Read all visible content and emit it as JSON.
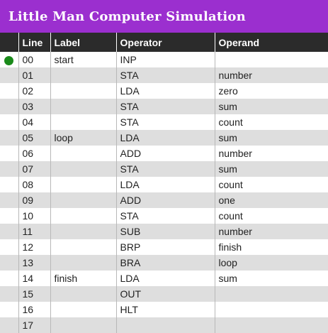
{
  "app": {
    "title": "Little Man Computer Simulation"
  },
  "table": {
    "headers": {
      "indicator": "",
      "line": "Line",
      "label": "Label",
      "operator": "Operator",
      "operand": "Operand"
    },
    "current_line": "00",
    "rows": [
      {
        "line": "00",
        "label": "start",
        "operator": "INP",
        "operand": ""
      },
      {
        "line": "01",
        "label": "",
        "operator": "STA",
        "operand": "number"
      },
      {
        "line": "02",
        "label": "",
        "operator": "LDA",
        "operand": "zero"
      },
      {
        "line": "03",
        "label": "",
        "operator": "STA",
        "operand": "sum"
      },
      {
        "line": "04",
        "label": "",
        "operator": "STA",
        "operand": "count"
      },
      {
        "line": "05",
        "label": "loop",
        "operator": "LDA",
        "operand": "sum"
      },
      {
        "line": "06",
        "label": "",
        "operator": "ADD",
        "operand": "number"
      },
      {
        "line": "07",
        "label": "",
        "operator": "STA",
        "operand": "sum"
      },
      {
        "line": "08",
        "label": "",
        "operator": "LDA",
        "operand": "count"
      },
      {
        "line": "09",
        "label": "",
        "operator": "ADD",
        "operand": "one"
      },
      {
        "line": "10",
        "label": "",
        "operator": "STA",
        "operand": "count"
      },
      {
        "line": "11",
        "label": "",
        "operator": "SUB",
        "operand": "number"
      },
      {
        "line": "12",
        "label": "",
        "operator": "BRP",
        "operand": "finish"
      },
      {
        "line": "13",
        "label": "",
        "operator": "BRA",
        "operand": "loop"
      },
      {
        "line": "14",
        "label": "finish",
        "operator": "LDA",
        "operand": "sum"
      },
      {
        "line": "15",
        "label": "",
        "operator": "OUT",
        "operand": ""
      },
      {
        "line": "16",
        "label": "",
        "operator": "HLT",
        "operand": ""
      },
      {
        "line": "17",
        "label": "",
        "operator": "",
        "operand": ""
      }
    ]
  },
  "colors": {
    "titlebar": "#9b2fcf",
    "header": "#2b2b2b",
    "current_indicator": "#1a8a1a",
    "stripe": "#dedede"
  }
}
